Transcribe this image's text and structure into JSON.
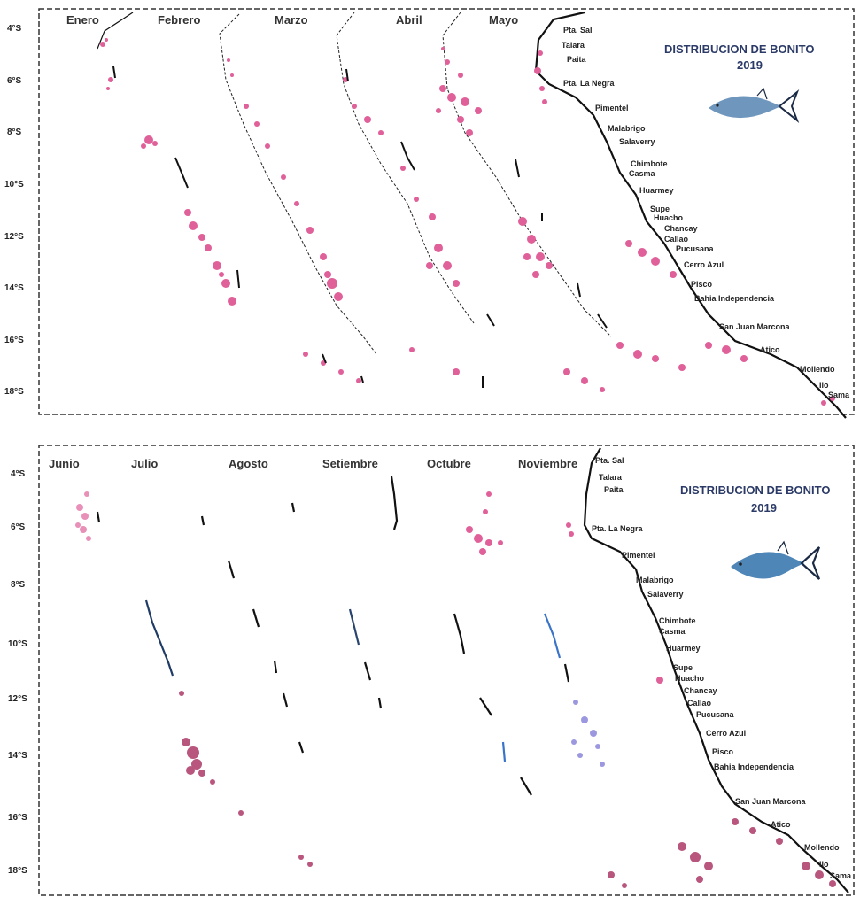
{
  "panels": [
    {
      "months": [
        "Enero",
        "Febrero",
        "Marzo",
        "Abril",
        "Mayo"
      ],
      "latitudes": [
        "4°S",
        "6°S",
        "8°S",
        "10°S",
        "12°S",
        "14°S",
        "16°S",
        "18°S"
      ],
      "title_line1": "DISTRIBUCION DE BONITO",
      "title_line2": "2019",
      "places": [
        "Pta. Sal",
        "Talara",
        "Paita",
        "Pta. La Negra",
        "Pimentel",
        "Malabrigo",
        "Salaverry",
        "Chimbote",
        "Casma",
        "Huarmey",
        "Supe",
        "Huacho",
        "Chancay",
        "Callao",
        "Pucusana",
        "Cerro Azul",
        "Pisco",
        "Bahia Independencia",
        "San Juan Marcona",
        "Atico",
        "Mollendo",
        "Ilo",
        "Sama"
      ],
      "fish_color": "#6f96bd"
    },
    {
      "months": [
        "Junio",
        "Julio",
        "Agosto",
        "Setiembre",
        "Octubre",
        "Noviembre"
      ],
      "latitudes": [
        "4°S",
        "6°S",
        "8°S",
        "10°S",
        "12°S",
        "14°S",
        "16°S",
        "18°S"
      ],
      "title_line1": "DISTRIBUCION DE BONITO",
      "title_line2": "2019",
      "places": [
        "Pta. Sal",
        "Talara",
        "Paita",
        "Pta. La Negra",
        "Pimentel",
        "Malabrigo",
        "Salaverry",
        "Chimbote",
        "Casma",
        "Huarmey",
        "Supe",
        "Huacho",
        "Chancay",
        "Callao",
        "Pucusana",
        "Cerro Azul",
        "Pisco",
        "Bahia Independencia",
        "San Juan Marcona",
        "Atico",
        "Mollendo",
        "Ilo",
        "Sama"
      ],
      "fish_color": "#4f86b8"
    }
  ],
  "colors": {
    "catch_pink": "#e0609a",
    "catch_mauve": "#b8567e",
    "catch_blue": "#3a74c8",
    "catch_lavender": "#9c98e0",
    "coast": "#111111"
  }
}
